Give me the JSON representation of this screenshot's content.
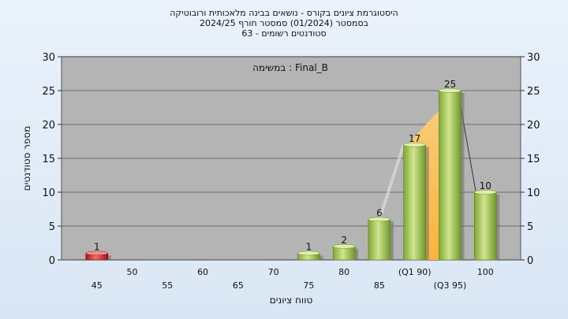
{
  "titles": {
    "line1": "היסטוגרמת ציונים בקורס - נושאים בבינה מלאכותית ורובוטיקה",
    "line2": "בסמסטר  (01/2024)  סמסטר חורף 2024/25",
    "line3": "סטודנטים רשומים - 63"
  },
  "chart_data": {
    "type": "bar",
    "categories": [
      "45",
      "50",
      "55",
      "60",
      "65",
      "70",
      "75",
      "80",
      "85",
      "90",
      "95",
      "100"
    ],
    "category_labels": [
      "45",
      "50",
      "55",
      "60",
      "65",
      "70",
      "75",
      "80",
      "85",
      "(Q1 90)",
      "(Q3 95)",
      "100"
    ],
    "values": [
      1,
      0,
      0,
      0,
      0,
      0,
      1,
      2,
      6,
      17,
      25,
      10
    ],
    "value_labels": [
      "1",
      "",
      "",
      "",
      "",
      "",
      "1",
      "2",
      "6",
      "17",
      "25",
      "10"
    ],
    "xlabel": "טווח ציונים",
    "ylabel": "מספר סטודנטים",
    "ylim": [
      0,
      30
    ],
    "yticks": [
      0,
      5,
      10,
      15,
      20,
      25,
      30
    ],
    "annotation": "במשימה : Final_B",
    "quartile_band": [
      "90",
      "95"
    ],
    "grid": true,
    "colors": {
      "plot_bg": "#b4b4b4",
      "failing_bar": "#d42424",
      "passing_bar": "#9ec44a",
      "quartile_band": "#ffc24a"
    }
  }
}
